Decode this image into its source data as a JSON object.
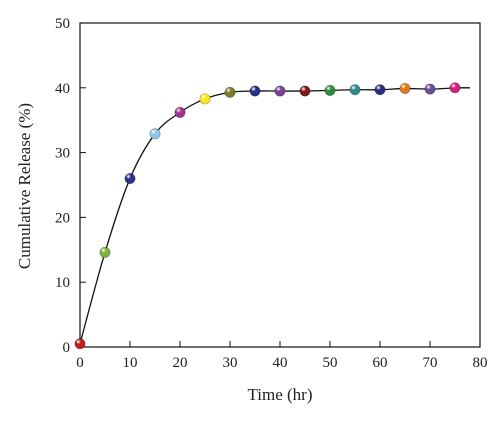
{
  "chart_data": {
    "type": "scatter",
    "title": "",
    "xlabel": "Time (hr)",
    "ylabel": "Cumulative Release (%)",
    "xlim": [
      0,
      80
    ],
    "ylim": [
      0,
      50
    ],
    "xticks": [
      "0",
      "10",
      "20",
      "30",
      "40",
      "50",
      "60",
      "70",
      "80"
    ],
    "yticks": [
      "0",
      "10",
      "20",
      "30",
      "40",
      "50"
    ],
    "grid": false,
    "legend": "none",
    "fit_line": true,
    "series": [
      {
        "x": [
          0,
          5,
          10,
          15,
          20,
          25,
          30,
          35,
          40,
          45,
          50,
          55,
          60,
          65,
          70,
          75
        ],
        "y": [
          0.5,
          14.6,
          26.0,
          32.9,
          36.2,
          38.3,
          39.3,
          39.5,
          39.5,
          39.5,
          39.6,
          39.7,
          39.7,
          39.9,
          39.8,
          40.0
        ],
        "colors": [
          "#c0201e",
          "#7fb33a",
          "#2e2e8e",
          "#8cc6e8",
          "#a2338f",
          "#ffe61a",
          "#7a7a2a",
          "#2a2f86",
          "#7a3f96",
          "#7a1a1a",
          "#2e8a3a",
          "#2f8a8f",
          "#2a2e7a",
          "#e07a20",
          "#6a4ea0",
          "#d02080"
        ]
      }
    ]
  }
}
